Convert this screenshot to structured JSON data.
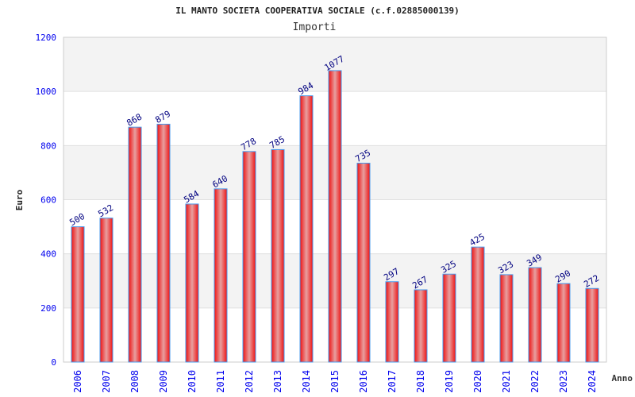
{
  "chart_data": {
    "type": "bar",
    "title": "IL MANTO SOCIETA COOPERATIVA SOCIALE (c.f.02885000139)",
    "subtitle": "Importi",
    "xlabel": "Anno",
    "ylabel": "Euro",
    "ylim": [
      0,
      1200
    ],
    "yticks": [
      0,
      200,
      400,
      600,
      800,
      1000,
      1200
    ],
    "grid": true,
    "categories": [
      "2006",
      "2007",
      "2008",
      "2009",
      "2010",
      "2011",
      "2012",
      "2013",
      "2014",
      "2015",
      "2016",
      "2017",
      "2018",
      "2019",
      "2020",
      "2021",
      "2022",
      "2023",
      "2024"
    ],
    "values": [
      500,
      532,
      868,
      879,
      584,
      640,
      778,
      785,
      984,
      1077,
      735,
      297,
      267,
      325,
      425,
      323,
      349,
      290,
      272
    ],
    "colors": {
      "bar": "#ee2222",
      "bar_edge": "#4499ee",
      "axis_text": "#0000ee",
      "label_text": "#000080",
      "band": "#f3f3f3"
    }
  }
}
